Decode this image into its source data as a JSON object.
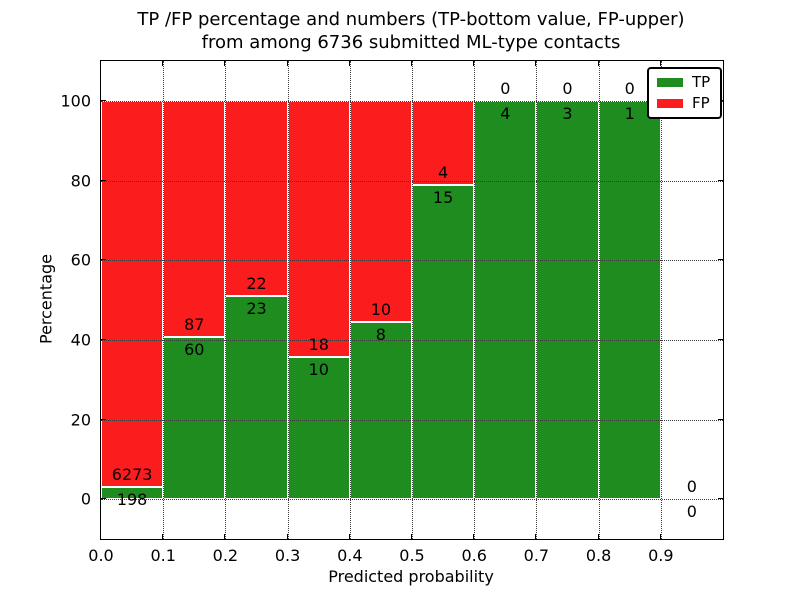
{
  "chart_data": {
    "type": "bar",
    "stacked": true,
    "title_line1": "TP /FP percentage and numbers (TP-bottom value, FP-upper)",
    "title_line2": "from among 6736 submitted ML-type contacts",
    "xlabel": "Predicted probability",
    "ylabel": "Percentage",
    "xlim": [
      0.0,
      1.0
    ],
    "ylim": [
      -10,
      110
    ],
    "grid": true,
    "xticks": [
      {
        "value": 0.0,
        "label": "0.0"
      },
      {
        "value": 0.1,
        "label": "0.1"
      },
      {
        "value": 0.2,
        "label": "0.2"
      },
      {
        "value": 0.3,
        "label": "0.3"
      },
      {
        "value": 0.4,
        "label": "0.4"
      },
      {
        "value": 0.5,
        "label": "0.5"
      },
      {
        "value": 0.6,
        "label": "0.6"
      },
      {
        "value": 0.7,
        "label": "0.7"
      },
      {
        "value": 0.8,
        "label": "0.8"
      },
      {
        "value": 0.9,
        "label": "0.9"
      }
    ],
    "yticks": [
      {
        "value": 0,
        "label": "0"
      },
      {
        "value": 20,
        "label": "20"
      },
      {
        "value": 40,
        "label": "40"
      },
      {
        "value": 60,
        "label": "60"
      },
      {
        "value": 80,
        "label": "80"
      },
      {
        "value": 100,
        "label": "100"
      }
    ],
    "colors": {
      "tp": "#1f8c1f",
      "fp": "#fb1d1d",
      "grid": "#3a3a3a"
    },
    "legend": {
      "position": "upper right",
      "entries": [
        {
          "label": "TP",
          "color_key": "tp"
        },
        {
          "label": "FP",
          "color_key": "fp"
        }
      ]
    },
    "bins": [
      {
        "range": [
          0.0,
          0.1
        ],
        "tp": 198,
        "fp": 6273,
        "tp_pct": 3.06,
        "fp_pct": 96.94
      },
      {
        "range": [
          0.1,
          0.2
        ],
        "tp": 60,
        "fp": 87,
        "tp_pct": 40.82,
        "fp_pct": 59.18
      },
      {
        "range": [
          0.2,
          0.3
        ],
        "tp": 23,
        "fp": 22,
        "tp_pct": 51.11,
        "fp_pct": 48.89
      },
      {
        "range": [
          0.3,
          0.4
        ],
        "tp": 10,
        "fp": 18,
        "tp_pct": 35.71,
        "fp_pct": 64.29
      },
      {
        "range": [
          0.4,
          0.5
        ],
        "tp": 8,
        "fp": 10,
        "tp_pct": 44.44,
        "fp_pct": 55.56
      },
      {
        "range": [
          0.5,
          0.6
        ],
        "tp": 15,
        "fp": 4,
        "tp_pct": 78.95,
        "fp_pct": 21.05
      },
      {
        "range": [
          0.6,
          0.7
        ],
        "tp": 4,
        "fp": 0,
        "tp_pct": 100,
        "fp_pct": 0
      },
      {
        "range": [
          0.7,
          0.8
        ],
        "tp": 3,
        "fp": 0,
        "tp_pct": 100,
        "fp_pct": 0
      },
      {
        "range": [
          0.8,
          0.9
        ],
        "tp": 1,
        "fp": 0,
        "tp_pct": 100,
        "fp_pct": 0
      },
      {
        "range": [
          0.9,
          1.0
        ],
        "tp": 0,
        "fp": 0,
        "tp_pct": 0,
        "fp_pct": 0
      }
    ]
  }
}
